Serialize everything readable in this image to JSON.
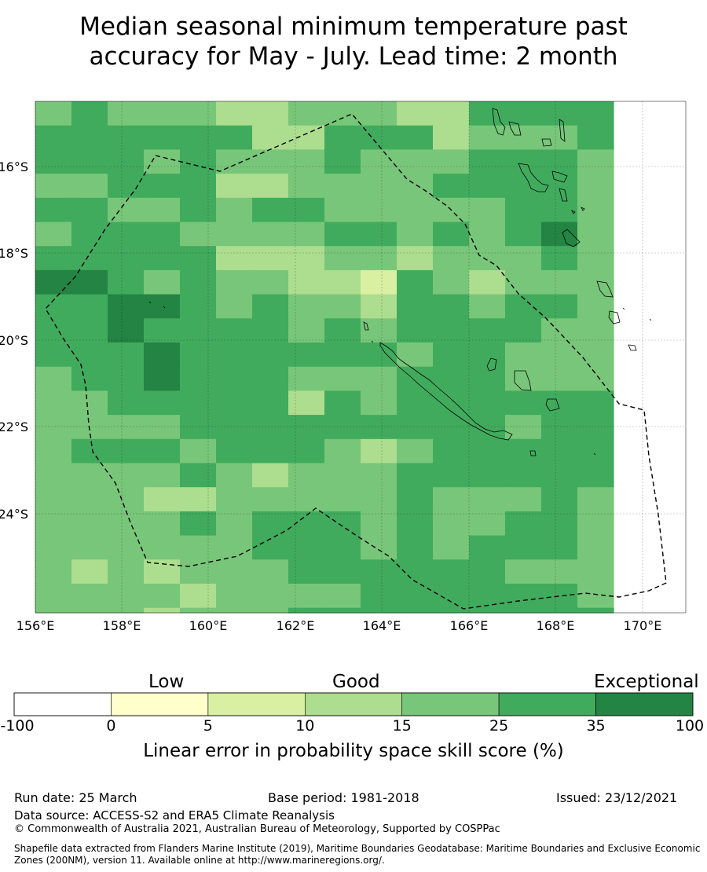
{
  "title_line1": "Median seasonal minimum temperature past",
  "title_line2": "accuracy for May - July. Lead time: 2 month",
  "map": {
    "lat_labels": [
      "16°S",
      "18°S",
      "20°S",
      "22°S",
      "24°S"
    ],
    "lon_labels": [
      "156°E",
      "158°E",
      "160°E",
      "162°E",
      "164°E",
      "166°E",
      "168°E",
      "170°E"
    ],
    "grid_rows": [
      "4544433444335555",
      "5555553355534445",
      "5554544454445554",
      "4455533444455554",
      "5544545544444554",
      "4555444455454564",
      "5555533344344454",
      "6654544332543444",
      "5566545443554554",
      "5565555454555544",
      "5556555555455444",
      "4556555444555444",
      "4455555354555555",
      "4444555555555455",
      "4555455543455555",
      "4444543444555555",
      "4443344444544454",
      "4444545554544554",
      "4444445554545554",
      "4343444555555444",
      "4444344445555554",
      "4443444555555555"
    ]
  },
  "colorbar": {
    "categories": [
      "Low",
      "Good",
      "Exceptional"
    ],
    "colors": [
      "#ffffff",
      "#ffffcc",
      "#d9f0a3",
      "#addd8e",
      "#78c679",
      "#41ab5d",
      "#238443"
    ],
    "ticks": [
      "-100",
      "0",
      "5",
      "10",
      "15",
      "25",
      "35",
      "100"
    ],
    "label": "Linear error in probability space skill score (%)"
  },
  "footer": {
    "run_date": "Run date: 25 March",
    "base_period": "Base period: 1981-2018",
    "issued": "Issued: 23/12/2021",
    "data_source": "Data source: ACCESS-S2 and ERA5 Climate Reanalysis",
    "copyright": "© Commonwealth of Australia 2021, Australian Bureau of Meteorology, Supported by COSPPac",
    "shapefile": "Shapefile data extracted from Flanders Marine Institute (2019), Maritime Boundaries Geodatabase: Maritime Boundaries and Exclusive Economic Zones (200NM), version 11. Available online at http://www.marineregions.org/."
  }
}
